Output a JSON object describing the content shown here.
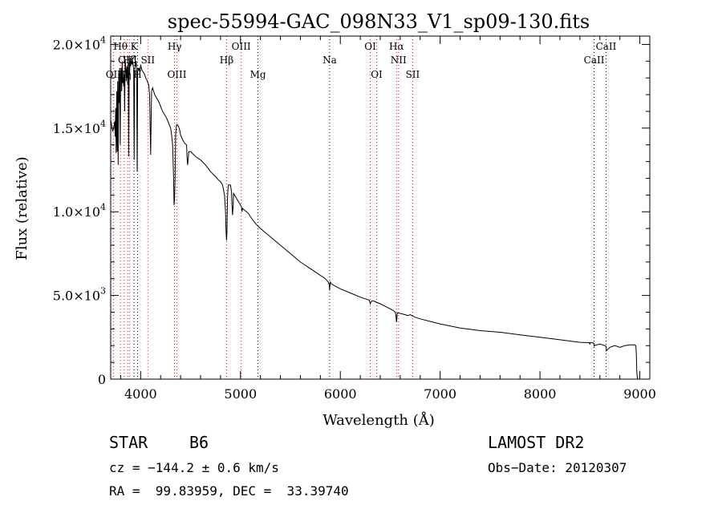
{
  "chart_data": {
    "type": "line",
    "title": "spec-55994-GAC_098N33_V1_sp09-130.fits",
    "xlabel": "Wavelength (Å)",
    "ylabel": "Flux (relative)",
    "xlim": [
      3700,
      9100
    ],
    "ylim": [
      0,
      20500
    ],
    "x_ticks": [
      4000,
      5000,
      6000,
      7000,
      8000,
      9000
    ],
    "x_tick_labels": [
      "4000",
      "5000",
      "6000",
      "7000",
      "8000",
      "9000"
    ],
    "y_ticks": [
      0,
      5000,
      10000,
      15000,
      20000
    ],
    "y_tick_labels": [
      {
        "mantissa": "0",
        "exponent": ""
      },
      {
        "mantissa": "5.0×10",
        "exponent": "3"
      },
      {
        "mantissa": "1.0×10",
        "exponent": "4"
      },
      {
        "mantissa": "1.5×10",
        "exponent": "4"
      },
      {
        "mantissa": "2.0×10",
        "exponent": "4"
      }
    ],
    "series": [
      {
        "name": "flux",
        "x": [
          3700,
          3720,
          3730,
          3740,
          3745,
          3750,
          3755,
          3760,
          3765,
          3770,
          3775,
          3780,
          3785,
          3790,
          3795,
          3800,
          3805,
          3810,
          3815,
          3820,
          3825,
          3830,
          3835,
          3840,
          3845,
          3850,
          3855,
          3860,
          3865,
          3870,
          3875,
          3880,
          3885,
          3890,
          3895,
          3900,
          3905,
          3910,
          3915,
          3920,
          3925,
          3930,
          3935,
          3940,
          3945,
          3950,
          3955,
          3960,
          3965,
          3970,
          3975,
          3980,
          3985,
          3990,
          3995,
          4000,
          4010,
          4020,
          4030,
          4040,
          4050,
          4060,
          4080,
          4090,
          4095,
          4100,
          4105,
          4110,
          4115,
          4120,
          4140,
          4160,
          4180,
          4200,
          4220,
          4240,
          4260,
          4280,
          4300,
          4310,
          4320,
          4330,
          4335,
          4340,
          4345,
          4350,
          4360,
          4370,
          4380,
          4390,
          4400,
          4420,
          4440,
          4460,
          4465,
          4471,
          4477,
          4482,
          4500,
          4550,
          4600,
          4650,
          4700,
          4750,
          4780,
          4800,
          4820,
          4840,
          4850,
          4855,
          4858,
          4861,
          4864,
          4867,
          4870,
          4875,
          4880,
          4900,
          4910,
          4915,
          4921,
          4927,
          4930,
          4940,
          4960,
          4980,
          5000,
          5010,
          5016,
          5020,
          5040,
          5080,
          5100,
          5150,
          5200,
          5300,
          5400,
          5500,
          5600,
          5700,
          5800,
          5850,
          5880,
          5890,
          5893,
          5896,
          5900,
          5910,
          5950,
          6000,
          6100,
          6200,
          6250,
          6290,
          6300,
          6310,
          6330,
          6360,
          6400,
          6450,
          6500,
          6530,
          6550,
          6556,
          6560,
          6563,
          6566,
          6570,
          6580,
          6620,
          6650,
          6680,
          6700,
          6750,
          6800,
          6900,
          7000,
          7200,
          7400,
          7600,
          7800,
          8000,
          8200,
          8400,
          8495,
          8500,
          8505,
          8540,
          8542,
          8545,
          8600,
          8660,
          8662,
          8665,
          8700,
          8750,
          8800,
          8850,
          8900,
          8950,
          8960,
          8965,
          8970,
          8975,
          8980,
          8990,
          9000
        ],
        "y": [
          15500,
          14800,
          15000,
          15400,
          14500,
          16200,
          13500,
          17200,
          13600,
          17800,
          12800,
          18300,
          16500,
          18600,
          14000,
          18200,
          18600,
          17200,
          19000,
          17700,
          18000,
          17500,
          18200,
          16000,
          19100,
          18700,
          17800,
          18500,
          18700,
          17600,
          18900,
          13300,
          18900,
          18200,
          19200,
          18700,
          19000,
          18900,
          18800,
          19000,
          18700,
          18600,
          13100,
          18400,
          18800,
          18700,
          19000,
          18500,
          12400,
          18400,
          18600,
          18500,
          18600,
          18400,
          18400,
          18800,
          18500,
          18400,
          18300,
          18200,
          18000,
          17900,
          17600,
          17000,
          15000,
          13400,
          15500,
          17200,
          17300,
          17400,
          17000,
          16800,
          16600,
          16300,
          16000,
          15800,
          15600,
          15300,
          15000,
          14600,
          14000,
          12000,
          10400,
          10800,
          12000,
          14600,
          15200,
          15200,
          15100,
          14900,
          14600,
          14300,
          14100,
          14000,
          13200,
          12800,
          13200,
          13600,
          13600,
          13300,
          13100,
          12800,
          12400,
          12100,
          11900,
          11800,
          11600,
          11000,
          10000,
          9000,
          8500,
          8300,
          8800,
          9700,
          10800,
          11400,
          11600,
          11600,
          11200,
          10400,
          9800,
          10400,
          11100,
          11000,
          10800,
          10600,
          10400,
          10300,
          10000,
          10200,
          10100,
          9900,
          9700,
          9300,
          9000,
          8500,
          8000,
          7500,
          7000,
          6600,
          6200,
          6000,
          5800,
          5600,
          5300,
          5650,
          5800,
          5700,
          5550,
          5400,
          5150,
          4900,
          4800,
          4720,
          4500,
          4650,
          4680,
          4600,
          4500,
          4350,
          4200,
          4100,
          4000,
          3850,
          3600,
          3400,
          3600,
          3950,
          3950,
          3900,
          3850,
          3800,
          3850,
          3700,
          3600,
          3450,
          3300,
          3050,
          2900,
          2800,
          2650,
          2500,
          2350,
          2200,
          2180,
          2100,
          2190,
          2150,
          1950,
          2000,
          2100,
          1980,
          1950,
          1700,
          1900,
          2000,
          1900,
          2000,
          2050,
          2050,
          2000,
          1500,
          400,
          100,
          0,
          0,
          0
        ]
      }
    ],
    "line_annotations": [
      {
        "label": "OII",
        "x": 3727,
        "color": "#ff0000",
        "row": "bottom"
      },
      {
        "label": "Hθ",
        "x": 3798,
        "color": "#ff0000",
        "row": "top"
      },
      {
        "label": "Hη",
        "x": 3835,
        "color": "#ff0000",
        "row": "bottom"
      },
      {
        "label": "OIII",
        "x": 3869,
        "color": "#ff0000",
        "row": "middle"
      },
      {
        "label": "Hζ",
        "x": 3889,
        "color": "#ff0000",
        "row": "middle"
      },
      {
        "label": "K",
        "x": 3934,
        "color": "#000000",
        "row": "top"
      },
      {
        "label": "H",
        "x": 3969,
        "color": "#000000",
        "row": "bottom"
      },
      {
        "label": "SII",
        "x": 4072,
        "color": "#ff0000",
        "row": "middle"
      },
      {
        "label": "Hγ",
        "x": 4340,
        "color": "#ff0000",
        "row": "top"
      },
      {
        "label": "OIII",
        "x": 4363,
        "color": "#ff0000",
        "row": "bottom"
      },
      {
        "label": "Hβ",
        "x": 4861,
        "color": "#ff0000",
        "row": "middle"
      },
      {
        "label": "OIII",
        "x": 5007,
        "color": "#ff0000",
        "row": "top"
      },
      {
        "label": "Mg",
        "x": 5175,
        "color": "#000000",
        "row": "bottom"
      },
      {
        "label": "Na",
        "x": 5893,
        "color": "#000000",
        "row": "middle"
      },
      {
        "label": "OI",
        "x": 6300,
        "color": "#ff0000",
        "row": "top"
      },
      {
        "label": "OI",
        "x": 6364,
        "color": "#ff0000",
        "row": "bottom"
      },
      {
        "label": "Hα",
        "x": 6563,
        "color": "#ff0000",
        "row": "top"
      },
      {
        "label": "NII",
        "x": 6583,
        "color": "#ff0000",
        "row": "middle"
      },
      {
        "label": "SII",
        "x": 6725,
        "color": "#ff0000",
        "row": "bottom"
      },
      {
        "label": "CaII",
        "x": 8542,
        "color": "#000000",
        "row": "middle"
      },
      {
        "label": "CaII",
        "x": 8662,
        "color": "#000000",
        "row": "top"
      }
    ],
    "grid": false
  },
  "info": {
    "object_type": "STAR",
    "subclass": "B6",
    "survey": "LAMOST DR2",
    "cz": "cz = −144.2 ± 0.6 km/s",
    "obs_date": "Obs−Date: 20120307",
    "coords": "RA =  99.83959, DEC =  33.39740"
  },
  "colors": {
    "axis": "#000000",
    "emission_line": "#ff0000",
    "absorption_line": "#000000",
    "spectrum": "#000000"
  }
}
